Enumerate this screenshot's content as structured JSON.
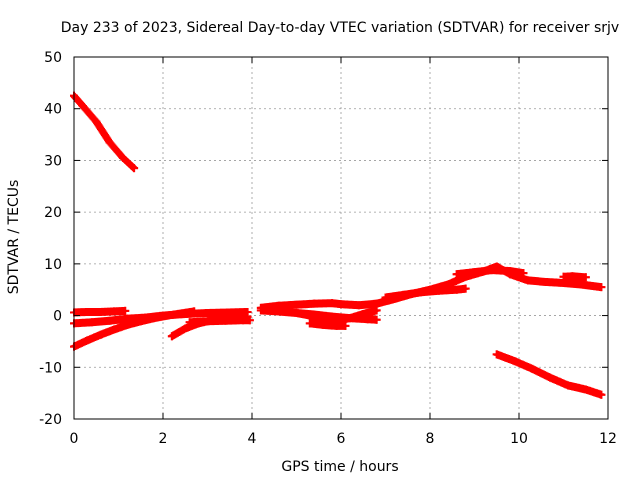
{
  "chart_data": {
    "type": "scatter",
    "title": "Day 233 of 2023, Sidereal Day-to-day VTEC variation (SDTVAR) for receiver srjv",
    "xlabel": "GPS time / hours",
    "ylabel": "SDTVAR / TECUs",
    "xlim": [
      0,
      12
    ],
    "ylim": [
      -20,
      50
    ],
    "xticks": [
      0,
      2,
      4,
      6,
      8,
      10,
      12
    ],
    "yticks": [
      -20,
      -10,
      0,
      10,
      20,
      30,
      40,
      50
    ],
    "xtick_labels": [
      "0",
      "2",
      "4",
      "6",
      "8",
      "10",
      "12"
    ],
    "ytick_labels": [
      "-20",
      "-10",
      "0",
      "10",
      "20",
      "30",
      "40",
      "50"
    ],
    "grid": true,
    "legend": "none",
    "marker": "plus",
    "color": "#ff0000",
    "series": [
      {
        "x": [
          0.0,
          0.2,
          0.5,
          0.8,
          1.1,
          1.35
        ],
        "y": [
          42.5,
          40.5,
          37.5,
          33.5,
          30.5,
          28.5
        ]
      },
      {
        "x": [
          0.0,
          0.3,
          0.6,
          0.9,
          1.15
        ],
        "y": [
          0.6,
          0.7,
          0.7,
          0.8,
          0.9
        ]
      },
      {
        "x": [
          0.0,
          0.4,
          0.8,
          1.2,
          1.6,
          2.0,
          2.5,
          3.0,
          3.5,
          3.9
        ],
        "y": [
          -1.5,
          -1.3,
          -1.0,
          -0.6,
          -0.4,
          0.0,
          0.3,
          0.5,
          0.6,
          0.7
        ]
      },
      {
        "x": [
          0.0,
          0.3,
          0.6,
          0.9,
          1.2,
          1.5,
          1.8,
          2.1,
          2.4,
          2.7
        ],
        "y": [
          -6.0,
          -4.8,
          -3.7,
          -2.7,
          -1.8,
          -1.1,
          -0.5,
          0.0,
          0.4,
          0.8
        ]
      },
      {
        "x": [
          2.2,
          2.5,
          2.8,
          3.1,
          3.4,
          3.7,
          3.9
        ],
        "y": [
          -4.0,
          -2.5,
          -1.5,
          -0.9,
          -0.5,
          -0.3,
          -0.2
        ]
      },
      {
        "x": [
          2.6,
          3.0,
          3.4,
          3.8,
          3.95
        ],
        "y": [
          -1.3,
          -1.1,
          -1.0,
          -0.9,
          -0.9
        ]
      },
      {
        "x": [
          4.2,
          4.6,
          5.0,
          5.4,
          5.8,
          6.2,
          6.6,
          6.8
        ],
        "y": [
          1.0,
          0.8,
          0.5,
          0.2,
          -0.2,
          -0.5,
          -0.7,
          -0.8
        ]
      },
      {
        "x": [
          4.2,
          4.6,
          5.0,
          5.4,
          5.8,
          6.0,
          6.4,
          6.8,
          7.2,
          7.6,
          8.0,
          8.4,
          8.8,
          9.2,
          9.5,
          9.8,
          10.2,
          10.6,
          11.0,
          11.4,
          11.85
        ],
        "y": [
          1.5,
          1.9,
          2.1,
          2.3,
          2.4,
          2.2,
          2.0,
          2.3,
          3.2,
          4.2,
          5.0,
          6.0,
          7.5,
          8.5,
          9.5,
          8.0,
          6.8,
          6.5,
          6.3,
          6.0,
          5.5
        ]
      },
      {
        "x": [
          5.0,
          5.3,
          5.6,
          5.9,
          6.2,
          6.5,
          6.8
        ],
        "y": [
          0.5,
          0.0,
          -0.8,
          -1.0,
          -0.5,
          0.3,
          1.0
        ]
      },
      {
        "x": [
          5.3,
          5.6,
          5.9,
          6.1
        ],
        "y": [
          -1.5,
          -1.8,
          -2.0,
          -2.0
        ]
      },
      {
        "x": [
          7.0,
          7.4,
          7.8,
          8.2,
          8.6,
          8.8
        ],
        "y": [
          3.5,
          4.0,
          4.5,
          4.8,
          5.0,
          5.2
        ]
      },
      {
        "x": [
          8.6,
          9.0,
          9.4,
          9.8,
          10.1
        ],
        "y": [
          8.0,
          8.4,
          8.8,
          8.6,
          8.2
        ]
      },
      {
        "x": [
          11.0,
          11.2,
          11.5
        ],
        "y": [
          7.5,
          7.6,
          7.4
        ]
      },
      {
        "x": [
          9.5,
          9.9,
          10.3,
          10.7,
          11.1,
          11.5,
          11.85
        ],
        "y": [
          -7.5,
          -8.8,
          -10.3,
          -12.0,
          -13.5,
          -14.3,
          -15.3
        ]
      }
    ]
  }
}
